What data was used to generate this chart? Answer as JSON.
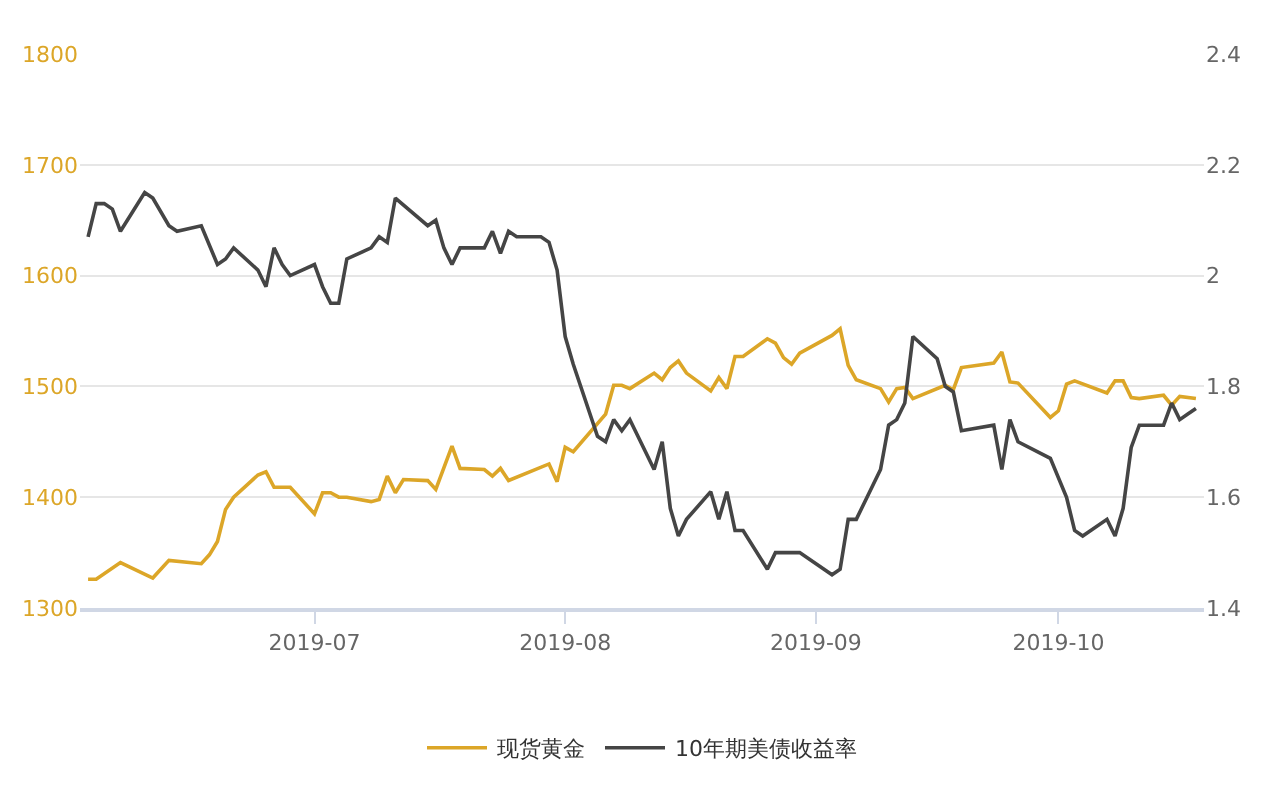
{
  "chart_data": {
    "type": "line",
    "series": [
      {
        "name": "现货黄金",
        "color": "#dca628",
        "axis": "y",
        "x": [
          "2019-06-03",
          "2019-06-04",
          "2019-06-07",
          "2019-06-11",
          "2019-06-13",
          "2019-06-17",
          "2019-06-18",
          "2019-06-19",
          "2019-06-20",
          "2019-06-21",
          "2019-06-24",
          "2019-06-25",
          "2019-06-26",
          "2019-06-28",
          "2019-07-01",
          "2019-07-02",
          "2019-07-03",
          "2019-07-04",
          "2019-07-05",
          "2019-07-08",
          "2019-07-09",
          "2019-07-10",
          "2019-07-11",
          "2019-07-12",
          "2019-07-15",
          "2019-07-16",
          "2019-07-18",
          "2019-07-19",
          "2019-07-22",
          "2019-07-23",
          "2019-07-24",
          "2019-07-25",
          "2019-07-30",
          "2019-07-31",
          "2019-08-01",
          "2019-08-02",
          "2019-08-06",
          "2019-08-07",
          "2019-08-08",
          "2019-08-09",
          "2019-08-12",
          "2019-08-13",
          "2019-08-14",
          "2019-08-15",
          "2019-08-16",
          "2019-08-19",
          "2019-08-20",
          "2019-08-21",
          "2019-08-22",
          "2019-08-23",
          "2019-08-26",
          "2019-08-27",
          "2019-08-28",
          "2019-08-29",
          "2019-08-30",
          "2019-09-03",
          "2019-09-04",
          "2019-09-05",
          "2019-09-06",
          "2019-09-09",
          "2019-09-10",
          "2019-09-11",
          "2019-09-12",
          "2019-09-13",
          "2019-09-17",
          "2019-09-18",
          "2019-09-19",
          "2019-09-23",
          "2019-09-24",
          "2019-09-25",
          "2019-09-26",
          "2019-09-30",
          "2019-10-01",
          "2019-10-02",
          "2019-10-03",
          "2019-10-07",
          "2019-10-08",
          "2019-10-09",
          "2019-10-10",
          "2019-10-11",
          "2019-10-14",
          "2019-10-15",
          "2019-10-16",
          "2019-10-18"
        ],
        "values": [
          1326,
          1326,
          1341,
          1327,
          1343,
          1340,
          1348,
          1360,
          1389,
          1400,
          1420,
          1423,
          1409,
          1409,
          1385,
          1404,
          1404,
          1400,
          1400,
          1396,
          1398,
          1419,
          1404,
          1416,
          1415,
          1407,
          1446,
          1426,
          1425,
          1419,
          1426,
          1415,
          1430,
          1414,
          1445,
          1441,
          1475,
          1501,
          1501,
          1498,
          1512,
          1506,
          1517,
          1523,
          1512,
          1496,
          1508,
          1498,
          1527,
          1527,
          1543,
          1539,
          1526,
          1520,
          1530,
          1546,
          1552,
          1519,
          1506,
          1498,
          1486,
          1498,
          1499,
          1489,
          1501,
          1497,
          1517,
          1521,
          1531,
          1504,
          1503,
          1472,
          1478,
          1502,
          1505,
          1494,
          1505,
          1505,
          1490,
          1489,
          1492,
          1483,
          1491,
          1489
        ]
      },
      {
        "name": "10年期美债收益率",
        "color": "#454545",
        "axis": "y2",
        "x": [
          "2019-06-03",
          "2019-06-04",
          "2019-06-05",
          "2019-06-06",
          "2019-06-07",
          "2019-06-10",
          "2019-06-11",
          "2019-06-13",
          "2019-06-14",
          "2019-06-17",
          "2019-06-19",
          "2019-06-20",
          "2019-06-21",
          "2019-06-24",
          "2019-06-25",
          "2019-06-26",
          "2019-06-27",
          "2019-06-28",
          "2019-07-01",
          "2019-07-02",
          "2019-07-03",
          "2019-07-04",
          "2019-07-05",
          "2019-07-08",
          "2019-07-09",
          "2019-07-10",
          "2019-07-11",
          "2019-07-15",
          "2019-07-16",
          "2019-07-17",
          "2019-07-18",
          "2019-07-19",
          "2019-07-22",
          "2019-07-23",
          "2019-07-24",
          "2019-07-25",
          "2019-07-26",
          "2019-07-29",
          "2019-07-30",
          "2019-07-31",
          "2019-08-01",
          "2019-08-02",
          "2019-08-05",
          "2019-08-06",
          "2019-08-07",
          "2019-08-08",
          "2019-08-09",
          "2019-08-12",
          "2019-08-13",
          "2019-08-14",
          "2019-08-15",
          "2019-08-16",
          "2019-08-19",
          "2019-08-20",
          "2019-08-21",
          "2019-08-22",
          "2019-08-23",
          "2019-08-26",
          "2019-08-27",
          "2019-08-28",
          "2019-08-29",
          "2019-08-30",
          "2019-09-03",
          "2019-09-04",
          "2019-09-05",
          "2019-09-06",
          "2019-09-09",
          "2019-09-10",
          "2019-09-11",
          "2019-09-12",
          "2019-09-13",
          "2019-09-16",
          "2019-09-17",
          "2019-09-18",
          "2019-09-19",
          "2019-09-23",
          "2019-09-24",
          "2019-09-25",
          "2019-09-26",
          "2019-09-30",
          "2019-10-02",
          "2019-10-03",
          "2019-10-04",
          "2019-10-07",
          "2019-10-08",
          "2019-10-09",
          "2019-10-10",
          "2019-10-11",
          "2019-10-14",
          "2019-10-15",
          "2019-10-16",
          "2019-10-17",
          "2019-10-18"
        ],
        "values": [
          2.07,
          2.13,
          2.13,
          2.12,
          2.08,
          2.15,
          2.14,
          2.09,
          2.08,
          2.09,
          2.02,
          2.03,
          2.05,
          2.01,
          1.98,
          2.05,
          2.02,
          2.0,
          2.02,
          1.98,
          1.95,
          1.95,
          2.03,
          2.05,
          2.07,
          2.06,
          2.14,
          2.09,
          2.1,
          2.05,
          2.02,
          2.05,
          2.05,
          2.08,
          2.04,
          2.08,
          2.07,
          2.07,
          2.06,
          2.01,
          1.89,
          1.84,
          1.71,
          1.7,
          1.74,
          1.72,
          1.74,
          1.65,
          1.7,
          1.58,
          1.53,
          1.56,
          1.61,
          1.56,
          1.61,
          1.54,
          1.54,
          1.47,
          1.5,
          1.5,
          1.5,
          1.5,
          1.46,
          1.47,
          1.56,
          1.56,
          1.65,
          1.73,
          1.74,
          1.77,
          1.89,
          1.85,
          1.8,
          1.79,
          1.72,
          1.73,
          1.65,
          1.74,
          1.7,
          1.67,
          1.6,
          1.54,
          1.53,
          1.56,
          1.53,
          1.58,
          1.69,
          1.73,
          1.73,
          1.77,
          1.74,
          1.75,
          1.76
        ]
      }
    ],
    "xlim": [
      "2019-06-02",
      "2019-10-19"
    ],
    "xticks": [
      {
        "value": "2019-07-01",
        "label": "2019-07"
      },
      {
        "value": "2019-08-01",
        "label": "2019-08"
      },
      {
        "value": "2019-09-01",
        "label": "2019-09"
      },
      {
        "value": "2019-10-01",
        "label": "2019-10"
      }
    ],
    "ylim": [
      1300,
      1800
    ],
    "yticks": [
      1300,
      1400,
      1500,
      1600,
      1700,
      1800
    ],
    "y2lim": [
      1.4,
      2.4
    ],
    "y2ticks": [
      {
        "value": 1.4,
        "label": "1.4"
      },
      {
        "value": 1.6,
        "label": "1.6"
      },
      {
        "value": 1.8,
        "label": "1.8"
      },
      {
        "value": 2,
        "label": "2"
      },
      {
        "value": 2.2,
        "label": "2.2"
      },
      {
        "value": 2.4,
        "label": "2.4"
      }
    ],
    "grid": "y",
    "legend": "bottom",
    "line_style": "solid"
  }
}
